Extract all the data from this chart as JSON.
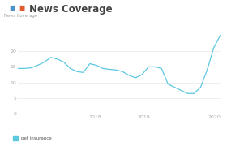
{
  "title": "News Coverage",
  "ylabel": "News Coverage",
  "line_color": "#5bc8e0",
  "background_color": "#ffffff",
  "legend_label": "pet insurance",
  "legend_color": "#5bc8e0",
  "x_tick_positions": [
    0.38,
    0.62,
    0.97
  ],
  "x_tick_labels": [
    "2018",
    "2019",
    "2020"
  ],
  "y_ticks": [
    0,
    5,
    10,
    15,
    20
  ],
  "ylim": [
    0,
    27
  ],
  "y_values": [
    14.5,
    14.5,
    14.7,
    15.5,
    16.5,
    18,
    17.5,
    16.5,
    14.5,
    13.5,
    13.2,
    16,
    15.5,
    14.5,
    14.2,
    14.0,
    13.5,
    12.3,
    11.5,
    12.5,
    15,
    15,
    14.5,
    9.5,
    8.5,
    7.5,
    6.5,
    6.5,
    8.5,
    14,
    21,
    25
  ],
  "icon_colors": [
    "#4e93c8",
    "#e05c30"
  ],
  "title_color": "#444444",
  "tick_color": "#aaaaaa",
  "grid_color": "#e8e8e8",
  "ylabel_color": "#999999",
  "legend_text_color": "#555555"
}
